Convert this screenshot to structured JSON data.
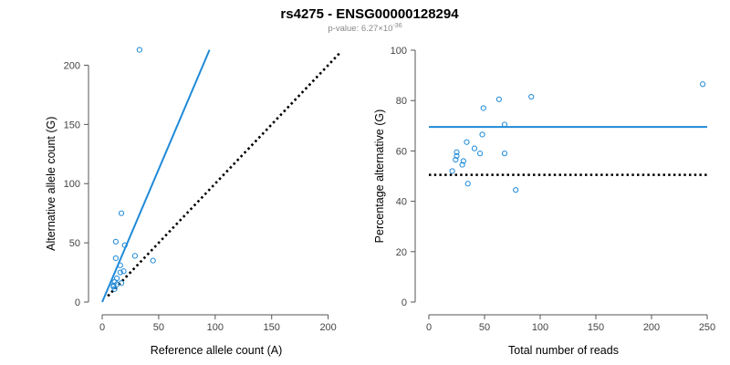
{
  "header": {
    "title": "rs4275 - ENSG00000128294",
    "pvalue_prefix": "p-value: 6.27",
    "pvalue_times": "×",
    "pvalue_base": "10",
    "pvalue_exponent": "-36"
  },
  "colors": {
    "accent": "#1f8ad8",
    "reference_line": "#000000",
    "axis": "#555555"
  },
  "chart_data": [
    {
      "type": "scatter",
      "title": "",
      "xlabel": "Reference allele count (A)",
      "ylabel": "Alternative allele count (G)",
      "xlim": [
        0,
        210
      ],
      "ylim": [
        0,
        215
      ],
      "xticks": [
        0,
        50,
        100,
        150,
        200
      ],
      "yticks": [
        0,
        50,
        100,
        150,
        200
      ],
      "grid": false,
      "points": [
        {
          "x": 33,
          "y": 213
        },
        {
          "x": 17,
          "y": 75
        },
        {
          "x": 12,
          "y": 51
        },
        {
          "x": 20,
          "y": 48
        },
        {
          "x": 12,
          "y": 37
        },
        {
          "x": 29,
          "y": 39
        },
        {
          "x": 45,
          "y": 35
        },
        {
          "x": 16,
          "y": 31
        },
        {
          "x": 16,
          "y": 25
        },
        {
          "x": 19,
          "y": 26
        },
        {
          "x": 13,
          "y": 20
        },
        {
          "x": 11,
          "y": 17
        },
        {
          "x": 13,
          "y": 15
        },
        {
          "x": 17,
          "y": 16
        },
        {
          "x": 10,
          "y": 13
        },
        {
          "x": 11,
          "y": 11
        },
        {
          "x": 10,
          "y": 14
        }
      ],
      "lines": [
        {
          "style": "solid",
          "color": "#1f8ad8",
          "from": [
            0,
            0
          ],
          "to": [
            95,
            213
          ]
        },
        {
          "style": "dotted",
          "color": "#000000",
          "from": [
            5,
            5
          ],
          "to": [
            210,
            210
          ]
        }
      ]
    },
    {
      "type": "scatter",
      "title": "",
      "xlabel": "Total number of reads",
      "ylabel": "Percentage alternative (G)",
      "xlim": [
        0,
        250
      ],
      "ylim": [
        0,
        100
      ],
      "xticks": [
        0,
        50,
        100,
        150,
        200,
        250
      ],
      "yticks": [
        0,
        20,
        40,
        60,
        80,
        100
      ],
      "grid": false,
      "points": [
        {
          "x": 246,
          "y": 86.5
        },
        {
          "x": 92,
          "y": 81.5
        },
        {
          "x": 63,
          "y": 80.5
        },
        {
          "x": 49,
          "y": 77
        },
        {
          "x": 68,
          "y": 70.5
        },
        {
          "x": 48,
          "y": 66.5
        },
        {
          "x": 34,
          "y": 63.5
        },
        {
          "x": 41,
          "y": 61
        },
        {
          "x": 25,
          "y": 59.5
        },
        {
          "x": 46,
          "y": 59
        },
        {
          "x": 68,
          "y": 59
        },
        {
          "x": 25,
          "y": 58
        },
        {
          "x": 24,
          "y": 56.5
        },
        {
          "x": 31,
          "y": 56
        },
        {
          "x": 30,
          "y": 54.5
        },
        {
          "x": 21,
          "y": 52
        },
        {
          "x": 35,
          "y": 47
        },
        {
          "x": 78,
          "y": 44.5
        }
      ],
      "lines": [
        {
          "style": "solid",
          "color": "#1f8ad8",
          "from": [
            0,
            69.5
          ],
          "to": [
            250,
            69.5
          ]
        },
        {
          "style": "dotted",
          "color": "#000000",
          "from": [
            0,
            50.5
          ],
          "to": [
            250,
            50.5
          ]
        }
      ]
    }
  ]
}
